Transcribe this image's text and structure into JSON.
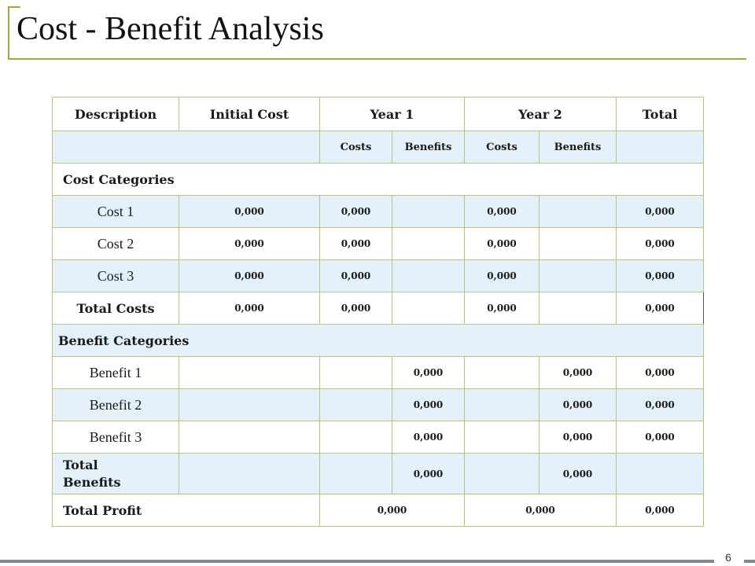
{
  "title": "Cost - Benefit Analysis",
  "header": {
    "description": "Description",
    "initial_cost": "Initial Cost",
    "year1": "Year 1",
    "year2": "Year 2",
    "total": "Total"
  },
  "subheader": {
    "y1_costs": "Costs",
    "y1_benefits": "Benefits",
    "y2_costs": "Costs",
    "y2_benefits": "Benefits"
  },
  "cost_categories": "Cost Categories",
  "cost_rows": [
    {
      "label": "Cost 1",
      "initial": "0,000",
      "y1_costs": "0,000",
      "y1_benefits": "",
      "y2_costs": "0,000",
      "y2_benefits": "",
      "total": "0,000"
    },
    {
      "label": "Cost 2",
      "initial": "0,000",
      "y1_costs": "0,000",
      "y1_benefits": "",
      "y2_costs": "0,000",
      "y2_benefits": "",
      "total": "0,000"
    },
    {
      "label": "Cost 3",
      "initial": "0,000",
      "y1_costs": "0,000",
      "y1_benefits": "",
      "y2_costs": "0,000",
      "y2_benefits": "",
      "total": "0,000"
    }
  ],
  "total_costs": {
    "label": "Total Costs",
    "initial": "0,000",
    "y1_costs": "0,000",
    "y1_benefits": "",
    "y2_costs": "0,000",
    "y2_benefits": "",
    "total": "0,000"
  },
  "benefit_categories": "Benefit Categories",
  "benefit_rows": [
    {
      "label": "Benefit 1",
      "initial": "",
      "y1_costs": "",
      "y1_benefits": "0,000",
      "y2_costs": "",
      "y2_benefits": "0,000",
      "total": "0,000"
    },
    {
      "label": "Benefit 2",
      "initial": "",
      "y1_costs": "",
      "y1_benefits": "0,000",
      "y2_costs": "",
      "y2_benefits": "0,000",
      "total": "0,000"
    },
    {
      "label": "Benefit 3",
      "initial": "",
      "y1_costs": "",
      "y1_benefits": "0,000",
      "y2_costs": "",
      "y2_benefits": "0,000",
      "total": "0,000"
    }
  ],
  "total_benefits": {
    "label_line1": "Total",
    "label_line2": "Benefits",
    "initial": "",
    "y1_costs": "",
    "y1_benefits": "0,000",
    "y2_costs": "",
    "y2_benefits": "0,000",
    "total": ""
  },
  "total_profit": {
    "label": "Total Profit",
    "year1": "0,000",
    "year2": "0,000",
    "total": "0,000"
  },
  "page_number": "6",
  "colors": {
    "accent": "#9aab3a",
    "grid": "#b5c77a",
    "shade": "#e5f1fa",
    "footer": "#7f8996"
  }
}
